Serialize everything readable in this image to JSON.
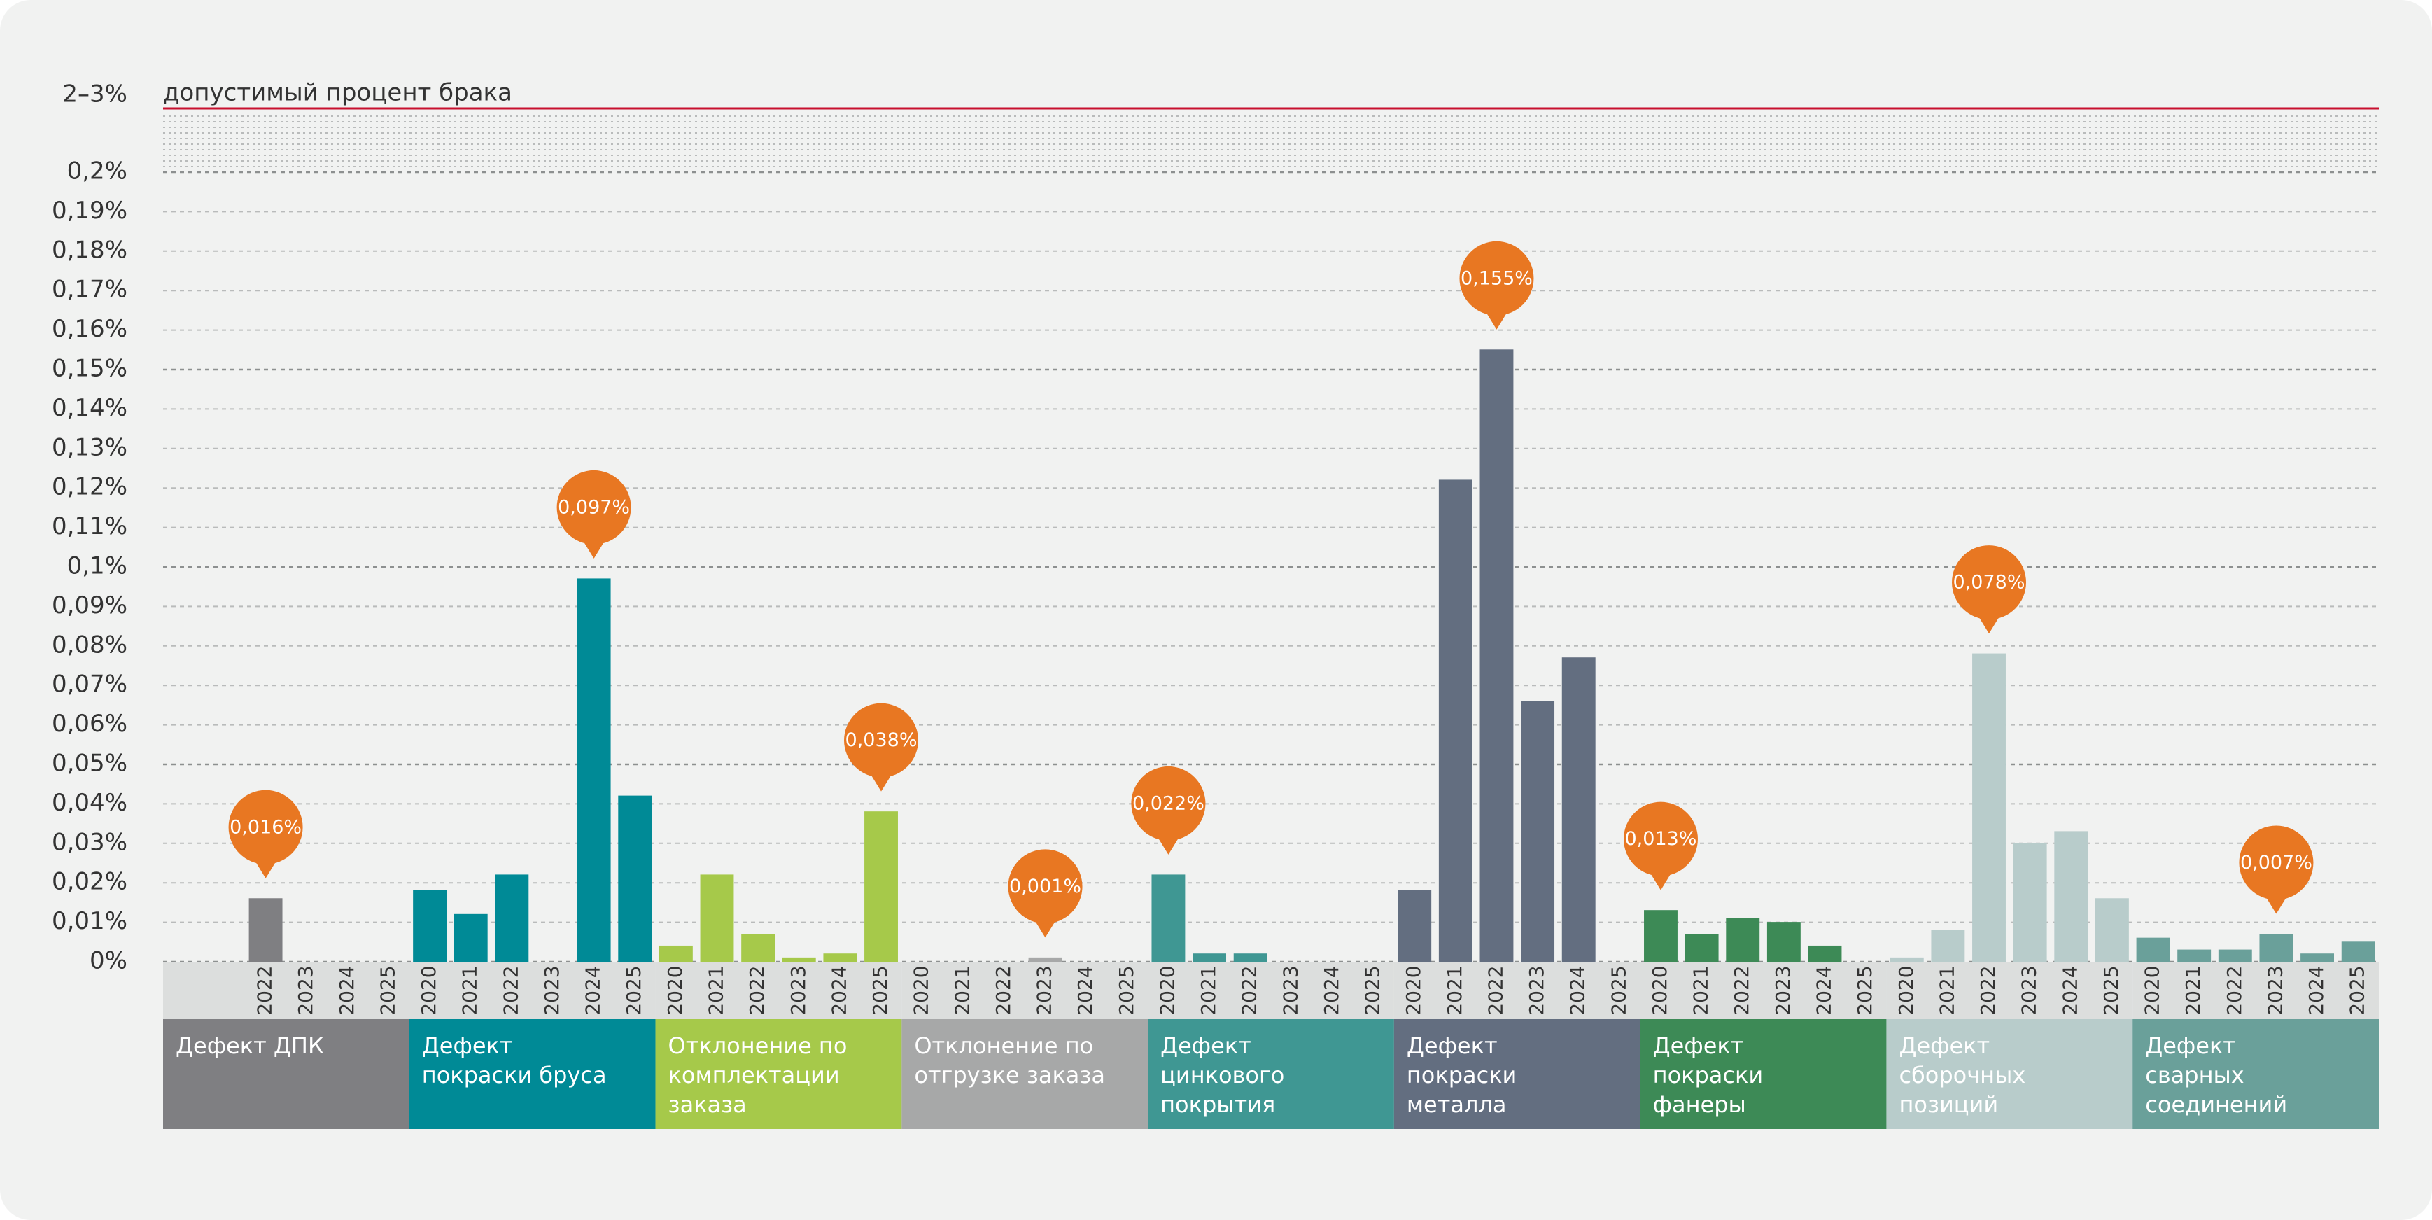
{
  "chart_data": {
    "type": "grouped_bar",
    "threshold": {
      "label": "2–3%",
      "text": "допустимый процент брака",
      "color": "#c8102e"
    },
    "ylim": [
      0,
      0.2
    ],
    "yticks": [
      {
        "value": 0,
        "label": "0%"
      },
      {
        "value": 0.01,
        "label": "0,01%"
      },
      {
        "value": 0.02,
        "label": "0,02%"
      },
      {
        "value": 0.03,
        "label": "0,03%"
      },
      {
        "value": 0.04,
        "label": "0,04%"
      },
      {
        "value": 0.05,
        "label": "0,05%"
      },
      {
        "value": 0.06,
        "label": "0,06%"
      },
      {
        "value": 0.07,
        "label": "0,07%"
      },
      {
        "value": 0.08,
        "label": "0,08%"
      },
      {
        "value": 0.09,
        "label": "0,09%"
      },
      {
        "value": 0.1,
        "label": "0,1%"
      },
      {
        "value": 0.11,
        "label": "0,11%"
      },
      {
        "value": 0.12,
        "label": "0,12%"
      },
      {
        "value": 0.13,
        "label": "0,13%"
      },
      {
        "value": 0.14,
        "label": "0,14%"
      },
      {
        "value": 0.15,
        "label": "0,15%"
      },
      {
        "value": 0.16,
        "label": "0,16%"
      },
      {
        "value": 0.17,
        "label": "0,17%"
      },
      {
        "value": 0.18,
        "label": "0,18%"
      },
      {
        "value": 0.19,
        "label": "0,19%"
      },
      {
        "value": 0.2,
        "label": "0,2%"
      }
    ],
    "grid": true,
    "callout_color": "#e87722",
    "groups": [
      {
        "name_lines": [
          "Дефект ДПК"
        ],
        "color": "#7f7f82",
        "categories": [
          null,
          null,
          "2022",
          "2023",
          "2024",
          "2025"
        ],
        "values": [
          null,
          null,
          0.016,
          0,
          0,
          0
        ],
        "value_labels": [
          null,
          null,
          "0,016%",
          null,
          null,
          null
        ]
      },
      {
        "name_lines": [
          "Дефект",
          "покраски бруса"
        ],
        "color": "#008a96",
        "categories": [
          "2020",
          "2021",
          "2022",
          "2023",
          "2024",
          "2025"
        ],
        "values": [
          0.018,
          0.012,
          0.022,
          0,
          0.097,
          0.042
        ],
        "value_labels": [
          null,
          null,
          null,
          null,
          "0,097%",
          null
        ]
      },
      {
        "name_lines": [
          "Отклонение по",
          "комплектации",
          "заказа"
        ],
        "color": "#a6c94a",
        "categories": [
          "2020",
          "2021",
          "2022",
          "2023",
          "2024",
          "2025"
        ],
        "values": [
          0.004,
          0.022,
          0.007,
          0.001,
          0.002,
          0.038
        ],
        "value_labels": [
          null,
          null,
          null,
          null,
          null,
          "0,038%"
        ]
      },
      {
        "name_lines": [
          "Отклонение по",
          "отгрузке заказа"
        ],
        "color": "#a7a8a8",
        "categories": [
          "2020",
          "2021",
          "2022",
          "2023",
          "2024",
          "2025"
        ],
        "values": [
          0,
          0,
          0,
          0.001,
          0,
          0
        ],
        "value_labels": [
          null,
          null,
          null,
          "0,001%",
          null,
          null
        ]
      },
      {
        "name_lines": [
          "Дефект",
          "цинкового",
          "покрытия"
        ],
        "color": "#3f9793",
        "categories": [
          "2020",
          "2021",
          "2022",
          "2023",
          "2024",
          "2025"
        ],
        "values": [
          0.022,
          0.002,
          0.002,
          0,
          0,
          0
        ],
        "value_labels": [
          "0,022%",
          null,
          null,
          null,
          null,
          null
        ]
      },
      {
        "name_lines": [
          "Дефект",
          "покраски",
          "металла"
        ],
        "color": "#636e80",
        "categories": [
          "2020",
          "2021",
          "2022",
          "2023",
          "2024",
          "2025"
        ],
        "values": [
          0.018,
          0.122,
          0.155,
          0.066,
          0.077,
          0
        ],
        "value_labels": [
          null,
          null,
          "0,155%",
          null,
          null,
          null
        ]
      },
      {
        "name_lines": [
          "Дефект",
          "покраски",
          "фанеры"
        ],
        "color": "#3d8a56",
        "categories": [
          "2020",
          "2021",
          "2022",
          "2023",
          "2024",
          "2025"
        ],
        "values": [
          0.013,
          0.007,
          0.011,
          0.01,
          0.004,
          0
        ],
        "value_labels": [
          "0,013%",
          null,
          null,
          null,
          null,
          null
        ]
      },
      {
        "name_lines": [
          "Дефект",
          "сборочных",
          "позиций"
        ],
        "color": "#b8cccb",
        "categories": [
          "2020",
          "2021",
          "2022",
          "2023",
          "2024",
          "2025"
        ],
        "values": [
          0.001,
          0.008,
          0.078,
          0.03,
          0.033,
          0.016
        ],
        "value_labels": [
          null,
          null,
          "0,078%",
          null,
          null,
          null
        ]
      },
      {
        "name_lines": [
          "Дефект",
          "сварных",
          "соединений"
        ],
        "color": "#6aa09a",
        "categories": [
          "2020",
          "2021",
          "2022",
          "2023",
          "2024",
          "2025"
        ],
        "values": [
          0.006,
          0.003,
          0.003,
          0.007,
          0.002,
          0.005
        ],
        "value_labels": [
          null,
          null,
          null,
          "0,007%",
          null,
          null
        ]
      }
    ]
  }
}
